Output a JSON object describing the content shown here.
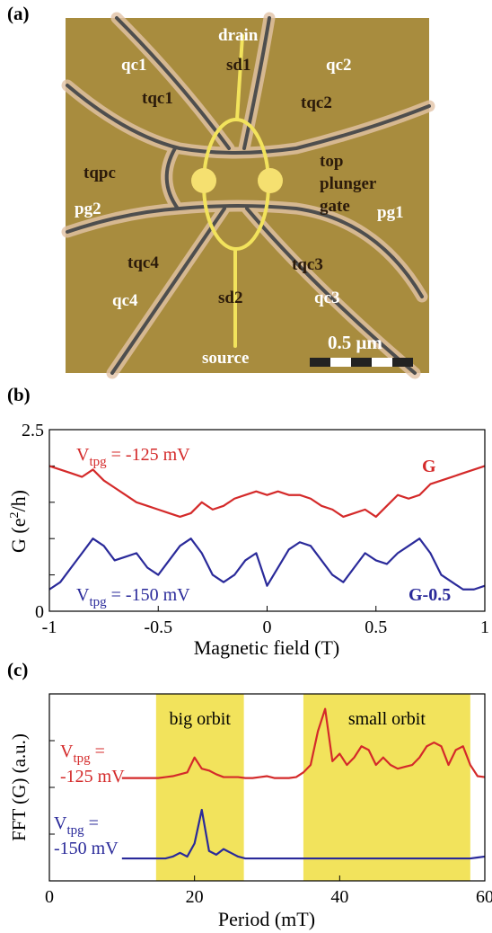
{
  "panel_a": {
    "label": "(a)",
    "texts": [
      "drain",
      "sd1",
      "qc1",
      "qc2",
      "tqc1",
      "tqc2",
      "tqpc",
      "top",
      "plunger",
      "gate",
      "pg2",
      "pg1",
      "tqc4",
      "tqc3",
      "qc4",
      "qc3",
      "sd2",
      "source"
    ],
    "scale_bar": "0.5 μm"
  },
  "chart_data": [
    {
      "type": "line",
      "panel_label": "(b)",
      "xlabel": "Magnetic field (T)",
      "ylabel": {
        "pre": "G (e",
        "sup": "2",
        "post": "/h)"
      },
      "xlim": [
        -1,
        1
      ],
      "ylim": [
        0,
        2.5
      ],
      "xticks": [
        -1,
        -0.5,
        0,
        0.5,
        1
      ],
      "yticks": [
        0,
        2.5
      ],
      "y_minor_ticks": [
        0.5,
        1,
        1.5,
        2
      ],
      "x": [
        -1,
        -0.95,
        -0.9,
        -0.85,
        -0.8,
        -0.75,
        -0.7,
        -0.65,
        -0.6,
        -0.55,
        -0.5,
        -0.45,
        -0.4,
        -0.35,
        -0.3,
        -0.25,
        -0.2,
        -0.15,
        -0.1,
        -0.05,
        0,
        0.05,
        0.1,
        0.15,
        0.2,
        0.25,
        0.3,
        0.35,
        0.4,
        0.45,
        0.5,
        0.55,
        0.6,
        0.65,
        0.7,
        0.75,
        0.8,
        0.85,
        0.9,
        0.95,
        1
      ],
      "series": [
        {
          "name": "G",
          "color": "#d42a2a",
          "values": [
            2.0,
            1.95,
            1.9,
            1.85,
            1.95,
            1.8,
            1.7,
            1.6,
            1.5,
            1.45,
            1.4,
            1.35,
            1.3,
            1.35,
            1.5,
            1.4,
            1.45,
            1.55,
            1.6,
            1.65,
            1.6,
            1.65,
            1.6,
            1.6,
            1.55,
            1.45,
            1.4,
            1.3,
            1.35,
            1.4,
            1.3,
            1.45,
            1.6,
            1.55,
            1.6,
            1.75,
            1.8,
            1.85,
            1.9,
            1.95,
            2.0
          ]
        },
        {
          "name": "G-0.5",
          "color": "#2a2a9a",
          "values": [
            0.3,
            0.4,
            0.6,
            0.8,
            1.0,
            0.9,
            0.7,
            0.75,
            0.8,
            0.6,
            0.5,
            0.7,
            0.9,
            1.0,
            0.8,
            0.5,
            0.4,
            0.5,
            0.7,
            0.8,
            0.35,
            0.6,
            0.85,
            0.95,
            0.9,
            0.7,
            0.5,
            0.4,
            0.6,
            0.8,
            0.7,
            0.65,
            0.8,
            0.9,
            1.0,
            0.8,
            0.5,
            0.4,
            0.3,
            0.3,
            0.35
          ]
        }
      ],
      "annotations": [
        {
          "main": "V",
          "sub": "tpg",
          "rest": " = -125 mV"
        },
        {
          "main": "V",
          "sub": "tpg",
          "rest": " = -150 mV"
        }
      ]
    },
    {
      "type": "line",
      "panel_label": "(c)",
      "xlabel": "Period (mT)",
      "ylabel": "FFT (G) (a.u.)",
      "xlim": [
        0,
        60
      ],
      "ylim": [
        0,
        1
      ],
      "xticks": [
        0,
        20,
        40,
        60
      ],
      "y_minor_ticks": [
        0.25,
        0.5,
        0.75
      ],
      "shaded_regions": [
        {
          "label": "big orbit",
          "range": [
            14.7,
            26.8
          ],
          "color": "#f2e35c"
        },
        {
          "label": "small orbit",
          "range": [
            35,
            58
          ],
          "color": "#f2e35c"
        }
      ],
      "x": [
        10,
        11,
        12,
        13,
        14,
        15,
        16,
        17,
        18,
        19,
        20,
        21,
        22,
        23,
        24,
        25,
        26,
        27,
        28,
        29,
        30,
        31,
        32,
        33,
        34,
        35,
        36,
        37,
        38,
        39,
        40,
        41,
        42,
        43,
        44,
        45,
        46,
        47,
        48,
        49,
        50,
        51,
        52,
        53,
        54,
        55,
        56,
        57,
        58,
        59,
        60
      ],
      "series": [
        {
          "color": "#d42a2a",
          "values": [
            0.55,
            0.55,
            0.55,
            0.55,
            0.55,
            0.55,
            0.555,
            0.56,
            0.57,
            0.58,
            0.66,
            0.6,
            0.59,
            0.57,
            0.555,
            0.555,
            0.555,
            0.55,
            0.55,
            0.555,
            0.56,
            0.55,
            0.55,
            0.55,
            0.555,
            0.58,
            0.62,
            0.8,
            0.92,
            0.64,
            0.68,
            0.62,
            0.66,
            0.72,
            0.7,
            0.62,
            0.66,
            0.62,
            0.6,
            0.61,
            0.62,
            0.66,
            0.72,
            0.74,
            0.72,
            0.62,
            0.7,
            0.72,
            0.62,
            0.56,
            0.555
          ]
        },
        {
          "color": "#2a2a9a",
          "values": [
            0.12,
            0.12,
            0.12,
            0.12,
            0.12,
            0.12,
            0.12,
            0.13,
            0.15,
            0.13,
            0.2,
            0.38,
            0.16,
            0.14,
            0.17,
            0.15,
            0.13,
            0.12,
            0.12,
            0.12,
            0.12,
            0.12,
            0.12,
            0.12,
            0.12,
            0.12,
            0.12,
            0.12,
            0.12,
            0.12,
            0.12,
            0.12,
            0.12,
            0.12,
            0.12,
            0.12,
            0.12,
            0.12,
            0.12,
            0.12,
            0.12,
            0.12,
            0.12,
            0.12,
            0.12,
            0.12,
            0.12,
            0.12,
            0.12,
            0.125,
            0.13
          ]
        }
      ],
      "annotations": [
        {
          "main": "V",
          "sub": "tpg",
          "rest": " =",
          "line2": "-125 mV"
        },
        {
          "main": "V",
          "sub": "tpg",
          "rest": " =",
          "line2": "-150 mV"
        }
      ]
    }
  ]
}
